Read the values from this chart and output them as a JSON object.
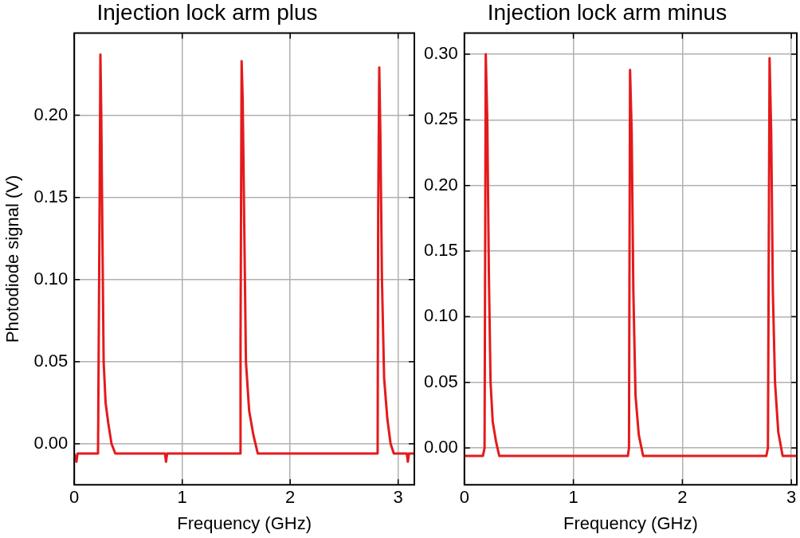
{
  "chart_data": [
    {
      "type": "line",
      "title": "Injection lock arm plus",
      "xlabel": "Frequency (GHz)",
      "ylabel": "Photodiode signal (V)",
      "xlim": [
        0,
        3.15
      ],
      "ylim": [
        -0.025,
        0.25
      ],
      "xticks": [
        0,
        1,
        2,
        3
      ],
      "yticks": [
        {
          "value": 0,
          "label": "0.00"
        },
        {
          "value": 0.05,
          "label": "0.05"
        },
        {
          "value": 0.1,
          "label": "0.10"
        },
        {
          "value": 0.15,
          "label": "0.15"
        },
        {
          "value": 0.2,
          "label": "0.20"
        }
      ],
      "grid": true,
      "series": [
        {
          "color": "#e41a1c",
          "x": [
            0,
            0.02,
            0.03,
            0.22,
            0.235,
            0.242,
            0.25,
            0.26,
            0.272,
            0.29,
            0.316,
            0.345,
            0.38,
            0.84,
            0.85,
            0.86,
            1.535,
            1.54,
            1.55,
            1.56,
            1.575,
            1.59,
            1.62,
            1.66,
            1.7,
            2.81,
            2.815,
            2.825,
            2.835,
            2.85,
            2.87,
            2.9,
            2.93,
            2.96,
            3.08,
            3.09,
            3.1,
            3.15
          ],
          "values": [
            -0.006,
            -0.011,
            -0.006,
            -0.006,
            0.15,
            0.237,
            0.2,
            0.13,
            0.05,
            0.025,
            0.012,
            0.0,
            -0.006,
            -0.006,
            -0.011,
            -0.006,
            -0.006,
            0.06,
            0.233,
            0.21,
            0.13,
            0.05,
            0.02,
            0.005,
            -0.006,
            -0.006,
            0.14,
            0.229,
            0.19,
            0.1,
            0.04,
            0.015,
            0.0,
            -0.006,
            -0.006,
            -0.011,
            -0.006,
            -0.006
          ]
        }
      ]
    },
    {
      "type": "line",
      "title": "Injection lock arm minus",
      "xlabel": "Frequency (GHz)",
      "xlim": [
        0,
        3.05
      ],
      "ylim": [
        -0.028,
        0.316
      ],
      "xticks": [
        0,
        1,
        2,
        3
      ],
      "yticks": [
        {
          "value": 0,
          "label": "0.00"
        },
        {
          "value": 0.05,
          "label": "0.05"
        },
        {
          "value": 0.1,
          "label": "0.10"
        },
        {
          "value": 0.15,
          "label": "0.15"
        },
        {
          "value": 0.2,
          "label": "0.20"
        },
        {
          "value": 0.25,
          "label": "0.25"
        },
        {
          "value": 0.3,
          "label": "0.30"
        }
      ],
      "grid": true,
      "series": [
        {
          "color": "#e41a1c",
          "x": [
            0,
            0.17,
            0.185,
            0.196,
            0.21,
            0.225,
            0.24,
            0.26,
            0.29,
            0.32,
            1.5,
            1.51,
            1.52,
            1.535,
            1.55,
            1.57,
            1.6,
            1.64,
            2.77,
            2.785,
            2.8,
            2.815,
            2.83,
            2.85,
            2.88,
            2.92,
            3.05
          ],
          "values": [
            -0.006,
            -0.006,
            0.0,
            0.3,
            0.25,
            0.13,
            0.05,
            0.02,
            0.005,
            -0.006,
            -0.006,
            0.0,
            0.288,
            0.24,
            0.12,
            0.04,
            0.01,
            -0.006,
            -0.006,
            0.0,
            0.297,
            0.24,
            0.12,
            0.05,
            0.012,
            -0.006,
            -0.006
          ]
        }
      ]
    }
  ]
}
